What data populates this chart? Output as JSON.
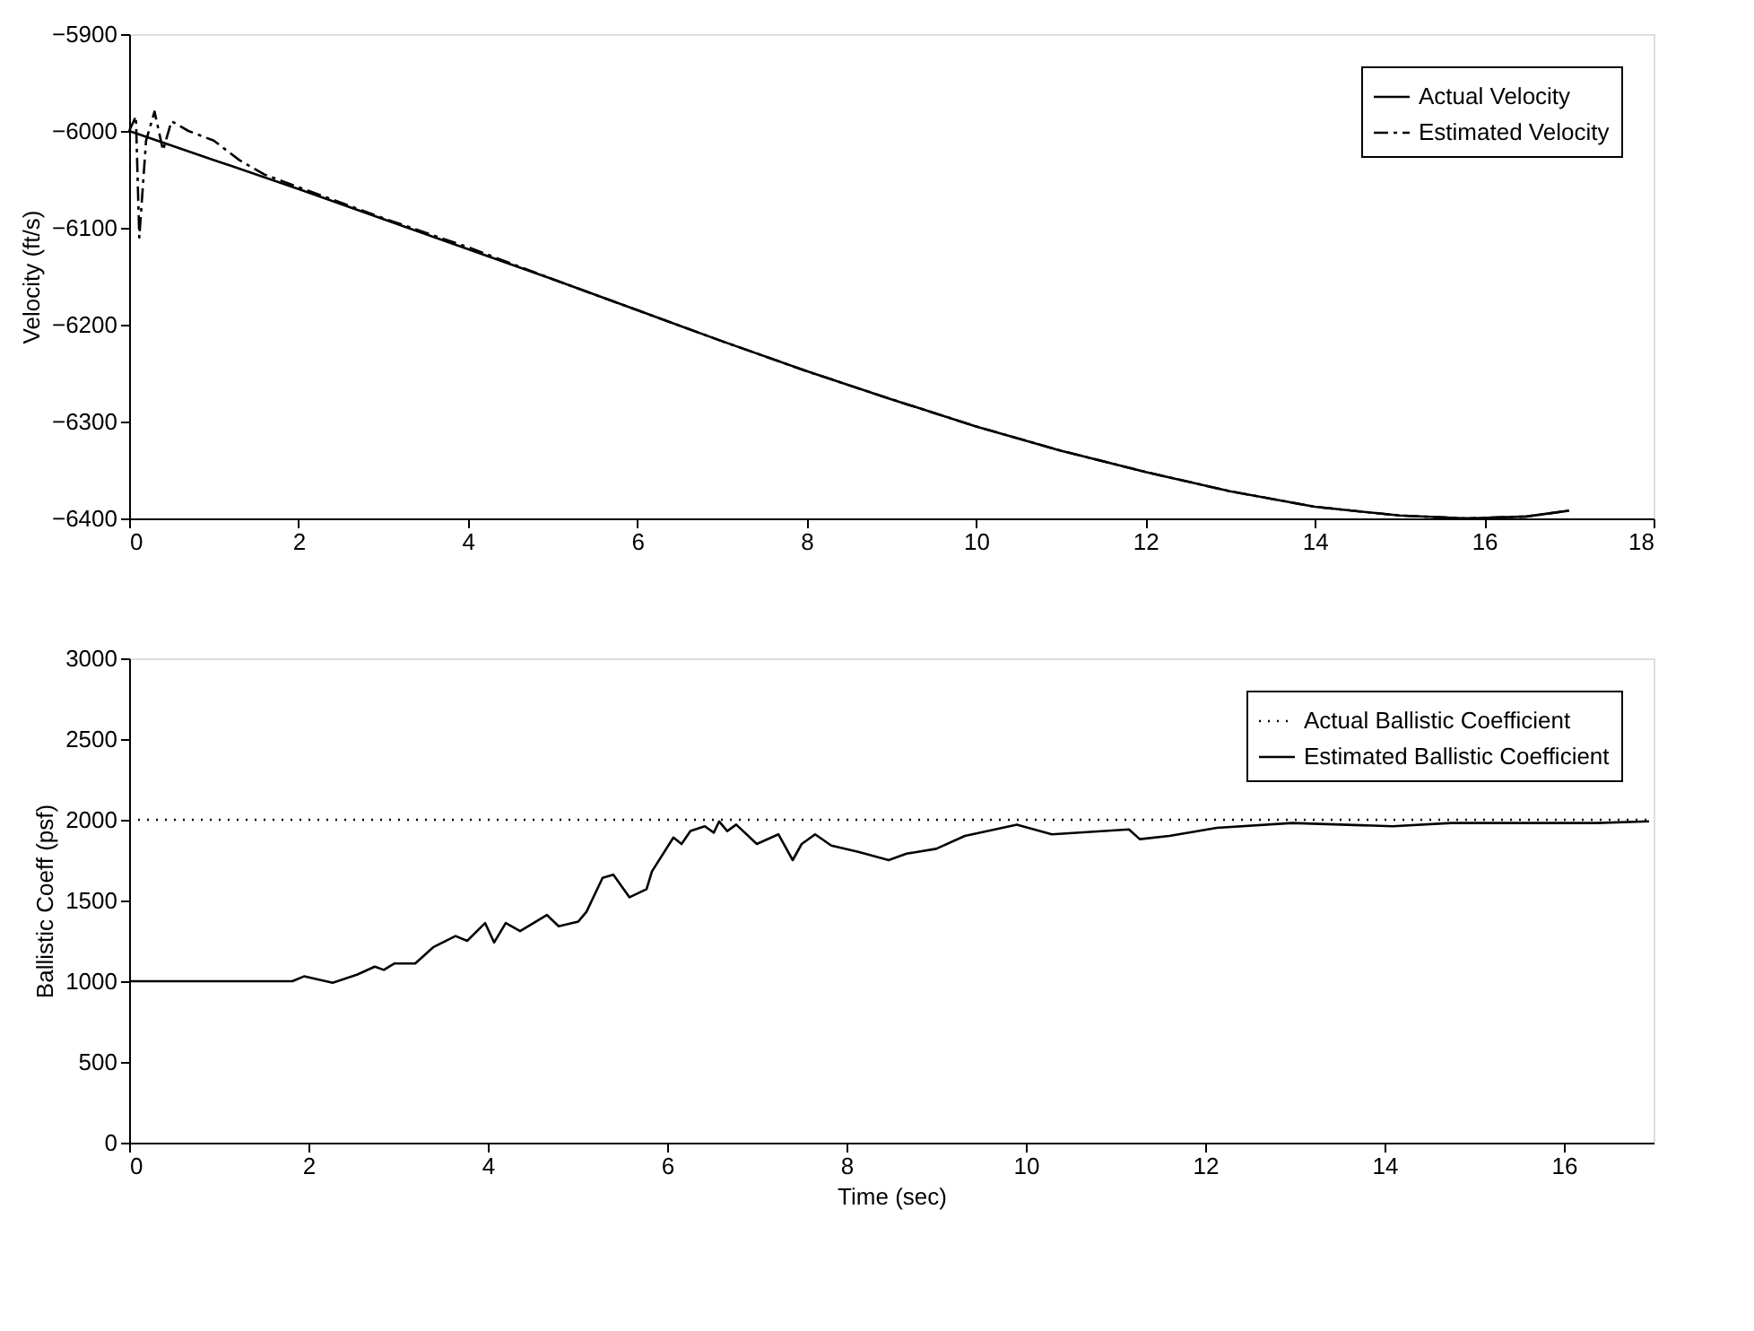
{
  "chart_data": [
    {
      "type": "line",
      "ylabel": "Velocity (ft/s)",
      "xlim": [
        0,
        18
      ],
      "xticks": [
        0,
        2,
        4,
        6,
        8,
        10,
        12,
        14,
        16,
        18
      ],
      "ylim": [
        -6400,
        -5900
      ],
      "yticks": [
        -6400,
        -6300,
        -6200,
        -6100,
        -6000,
        -5900
      ],
      "grid": false,
      "legend": "top right",
      "series": [
        {
          "name": "Actual Velocity",
          "color": "#000000",
          "line_style": "solid",
          "x": [
            0,
            1,
            2,
            3,
            4,
            5,
            6,
            7,
            8,
            9,
            10,
            11,
            12,
            13,
            14,
            15,
            15.8,
            16.5,
            17
          ],
          "values": [
            -6000,
            -6030,
            -6060,
            -6091,
            -6122,
            -6153,
            -6185,
            -6217,
            -6248,
            -6277,
            -6305,
            -6330,
            -6352,
            -6372,
            -6388,
            -6397,
            -6400,
            -6398,
            -6392
          ]
        },
        {
          "name": "Estimated Velocity",
          "color": "#000000",
          "line_style": "dashed",
          "x": [
            0,
            0.08,
            0.12,
            0.2,
            0.3,
            0.4,
            0.5,
            0.7,
            1.0,
            1.3,
            1.6,
            2,
            3,
            4,
            5,
            6,
            7,
            8,
            9,
            10,
            11,
            12,
            13,
            14,
            15,
            15.8,
            16.5,
            17
          ],
          "values": [
            -6000,
            -5985,
            -6110,
            -6010,
            -5980,
            -6020,
            -5990,
            -6000,
            -6010,
            -6030,
            -6045,
            -6058,
            -6090,
            -6120,
            -6153,
            -6185,
            -6217,
            -6248,
            -6277,
            -6305,
            -6330,
            -6352,
            -6372,
            -6388,
            -6397,
            -6400,
            -6398,
            -6392
          ]
        }
      ]
    },
    {
      "type": "line",
      "xlabel": "Time (sec)",
      "ylabel": "Ballistic Coeff (psf)",
      "xlim": [
        0,
        17
      ],
      "xticks": [
        0,
        2,
        4,
        6,
        8,
        10,
        12,
        14,
        16
      ],
      "ylim": [
        0,
        3000
      ],
      "yticks": [
        0,
        500,
        1000,
        1500,
        2000,
        2500,
        3000
      ],
      "grid": false,
      "legend": "top right",
      "series": [
        {
          "name": "Actual Ballistic Coefficient",
          "color": "#000000",
          "line_style": "dotted",
          "x": [
            0,
            17
          ],
          "values": [
            2000,
            2000
          ]
        },
        {
          "name": "Estimated Ballistic Coefficient",
          "color": "#000000",
          "line_style": "solid",
          "x": [
            0,
            1.82,
            1.95,
            2.27,
            2.54,
            2.74,
            2.84,
            2.96,
            3.19,
            3.39,
            3.64,
            3.77,
            3.97,
            4.07,
            4.2,
            4.36,
            4.66,
            4.79,
            5.01,
            5.1,
            5.28,
            5.4,
            5.58,
            5.77,
            5.83,
            6.07,
            6.16,
            6.26,
            6.42,
            6.52,
            6.58,
            6.67,
            6.77,
            7.0,
            7.24,
            7.4,
            7.5,
            7.65,
            7.83,
            8.14,
            8.47,
            8.67,
            9.0,
            9.32,
            9.9,
            10.29,
            11.15,
            11.27,
            11.6,
            12.13,
            12.97,
            14.09,
            14.74,
            16.36,
            16.95
          ],
          "values": [
            1000,
            1000,
            1030,
            990,
            1040,
            1090,
            1070,
            1110,
            1110,
            1210,
            1280,
            1250,
            1360,
            1240,
            1360,
            1310,
            1410,
            1340,
            1370,
            1430,
            1640,
            1660,
            1520,
            1570,
            1680,
            1890,
            1850,
            1930,
            1960,
            1920,
            1990,
            1930,
            1970,
            1850,
            1910,
            1750,
            1850,
            1910,
            1840,
            1800,
            1750,
            1790,
            1820,
            1900,
            1970,
            1910,
            1940,
            1880,
            1900,
            1950,
            1980,
            1960,
            1980,
            1980,
            1990
          ]
        }
      ]
    }
  ]
}
